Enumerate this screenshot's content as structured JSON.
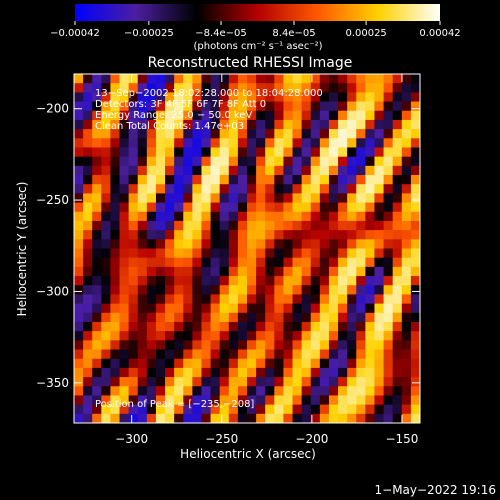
{
  "chart_data": {
    "type": "heatmap",
    "title": "Reconstructed RHESSI Image",
    "xlabel": "Heliocentric X (arcsec)",
    "ylabel": "Heliocentric Y (arcsec)",
    "xlim": [
      -332,
      -140
    ],
    "ylim": [
      -372,
      -181
    ],
    "x_ticks": [
      -300,
      -250,
      -200,
      -150
    ],
    "y_ticks": [
      -200,
      -250,
      -300,
      -350
    ],
    "x_tick_labels": [
      "−300",
      "−250",
      "−200",
      "−150"
    ],
    "y_tick_labels": [
      "−200",
      "−250",
      "−300",
      "−350"
    ],
    "colorbar": {
      "range": [
        -0.00042,
        0.00042
      ],
      "tick_labels": [
        "−0.00042",
        "−0.00025",
        "−8.4e−05",
        "8.4e−05",
        "0.00025",
        "0.00042"
      ],
      "units": "(photons cm⁻² s⁻¹ asec⁻²)",
      "colors": [
        "#0000ff",
        "#4b1fa0",
        "#000000",
        "#b40000",
        "#ff5a00",
        "#ffd200",
        "#ffffff"
      ]
    },
    "info_lines": [
      "13−Sep−2002 18:02:28.000 to 18:04:28.000",
      "Detectors: 3F 4F 5F 6F 7F 8F  Att 0",
      "Energy Range: 25.0 − 50.0 keV",
      "Clean     Total Counts: 1.47e+03"
    ],
    "peak_label": "Position of Peak = [−235,−208]",
    "peak_position": [
      -235,
      -208
    ],
    "grid": false
  },
  "footer": {
    "date": "1−May−2022 19:16"
  }
}
